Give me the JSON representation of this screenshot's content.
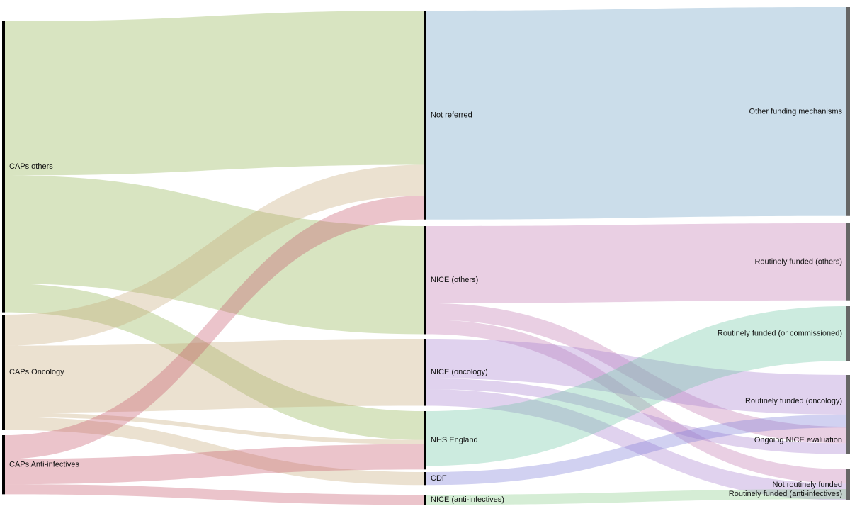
{
  "chart_data": {
    "type": "sankey",
    "colors": {
      "caps_others": "#8fb34d",
      "caps_oncology": "#c6a878",
      "caps_anti_infectives": "#c7566a",
      "not_referred": "#6b9fc2",
      "nice_others": "#c175ae",
      "nice_oncology": "#a77fcf",
      "nhs_england": "#6cc6a4",
      "cdf": "#7a7cd6",
      "nice_anti_infectives": "#88cc88",
      "node_bar": "#000000",
      "output_bar": "#666666"
    },
    "nodes": [
      {
        "id": "caps_others",
        "label": "CAPs others"
      },
      {
        "id": "caps_oncology",
        "label": "CAPs Oncology"
      },
      {
        "id": "caps_anti_infectives",
        "label": "CAPs Anti-infectives"
      },
      {
        "id": "not_referred",
        "label": "Not referred"
      },
      {
        "id": "nice_others",
        "label": "NICE (others)"
      },
      {
        "id": "nice_oncology",
        "label": "NICE (oncology)"
      },
      {
        "id": "nhs_england",
        "label": "NHS England"
      },
      {
        "id": "cdf",
        "label": "CDF"
      },
      {
        "id": "nice_anti_infectives",
        "label": "NICE (anti-infectives)"
      },
      {
        "id": "other_funding",
        "label": "Other funding mechanisms"
      },
      {
        "id": "rf_others",
        "label": "Routinely funded (others)"
      },
      {
        "id": "rf_commissioned",
        "label": "Routinely funded (or commissioned)"
      },
      {
        "id": "rf_oncology",
        "label": "Routinely funded (oncology)"
      },
      {
        "id": "ongoing_nice",
        "label": "Ongoing NICE evaluation"
      },
      {
        "id": "not_rf",
        "label": "Not routinely funded"
      },
      {
        "id": "rf_anti_infectives",
        "label": "Routinely funded (anti-infectives)"
      }
    ],
    "links": [
      {
        "source": "caps_others",
        "target": "not_referred",
        "value": 214,
        "color_key": "caps_others"
      },
      {
        "source": "caps_others",
        "target": "nice_others",
        "value": 150,
        "color_key": "caps_others"
      },
      {
        "source": "caps_others",
        "target": "nhs_england",
        "value": 40,
        "color_key": "caps_others"
      },
      {
        "source": "caps_oncology",
        "target": "not_referred",
        "value": 43,
        "color_key": "caps_oncology"
      },
      {
        "source": "caps_oncology",
        "target": "nice_oncology",
        "value": 93,
        "color_key": "caps_oncology"
      },
      {
        "source": "caps_oncology",
        "target": "nhs_england",
        "value": 6,
        "color_key": "caps_oncology"
      },
      {
        "source": "caps_oncology",
        "target": "cdf",
        "value": 18,
        "color_key": "caps_oncology"
      },
      {
        "source": "caps_anti_infectives",
        "target": "not_referred",
        "value": 33,
        "color_key": "caps_anti_infectives"
      },
      {
        "source": "caps_anti_infectives",
        "target": "nhs_england",
        "value": 35,
        "color_key": "caps_anti_infectives"
      },
      {
        "source": "caps_anti_infectives",
        "target": "nice_anti_infectives",
        "value": 14,
        "color_key": "caps_anti_infectives"
      },
      {
        "source": "not_referred",
        "target": "other_funding",
        "value": 290,
        "color_key": "not_referred"
      },
      {
        "source": "nice_others",
        "target": "rf_others",
        "value": 107,
        "color_key": "nice_others"
      },
      {
        "source": "nice_others",
        "target": "ongoing_nice",
        "value": 23,
        "color_key": "nice_others"
      },
      {
        "source": "nice_others",
        "target": "not_rf",
        "value": 20,
        "color_key": "nice_others"
      },
      {
        "source": "nice_oncology",
        "target": "rf_oncology",
        "value": 55,
        "color_key": "nice_oncology"
      },
      {
        "source": "nice_oncology",
        "target": "ongoing_nice",
        "value": 15,
        "color_key": "nice_oncology"
      },
      {
        "source": "nice_oncology",
        "target": "not_rf",
        "value": 23,
        "color_key": "nice_oncology"
      },
      {
        "source": "nhs_england",
        "target": "rf_commissioned",
        "value": 76,
        "color_key": "nhs_england"
      },
      {
        "source": "cdf",
        "target": "rf_oncology",
        "value": 18,
        "color_key": "cdf"
      },
      {
        "source": "nice_anti_infectives",
        "target": "rf_anti_infectives",
        "value": 14,
        "color_key": "nice_anti_infectives"
      }
    ]
  }
}
